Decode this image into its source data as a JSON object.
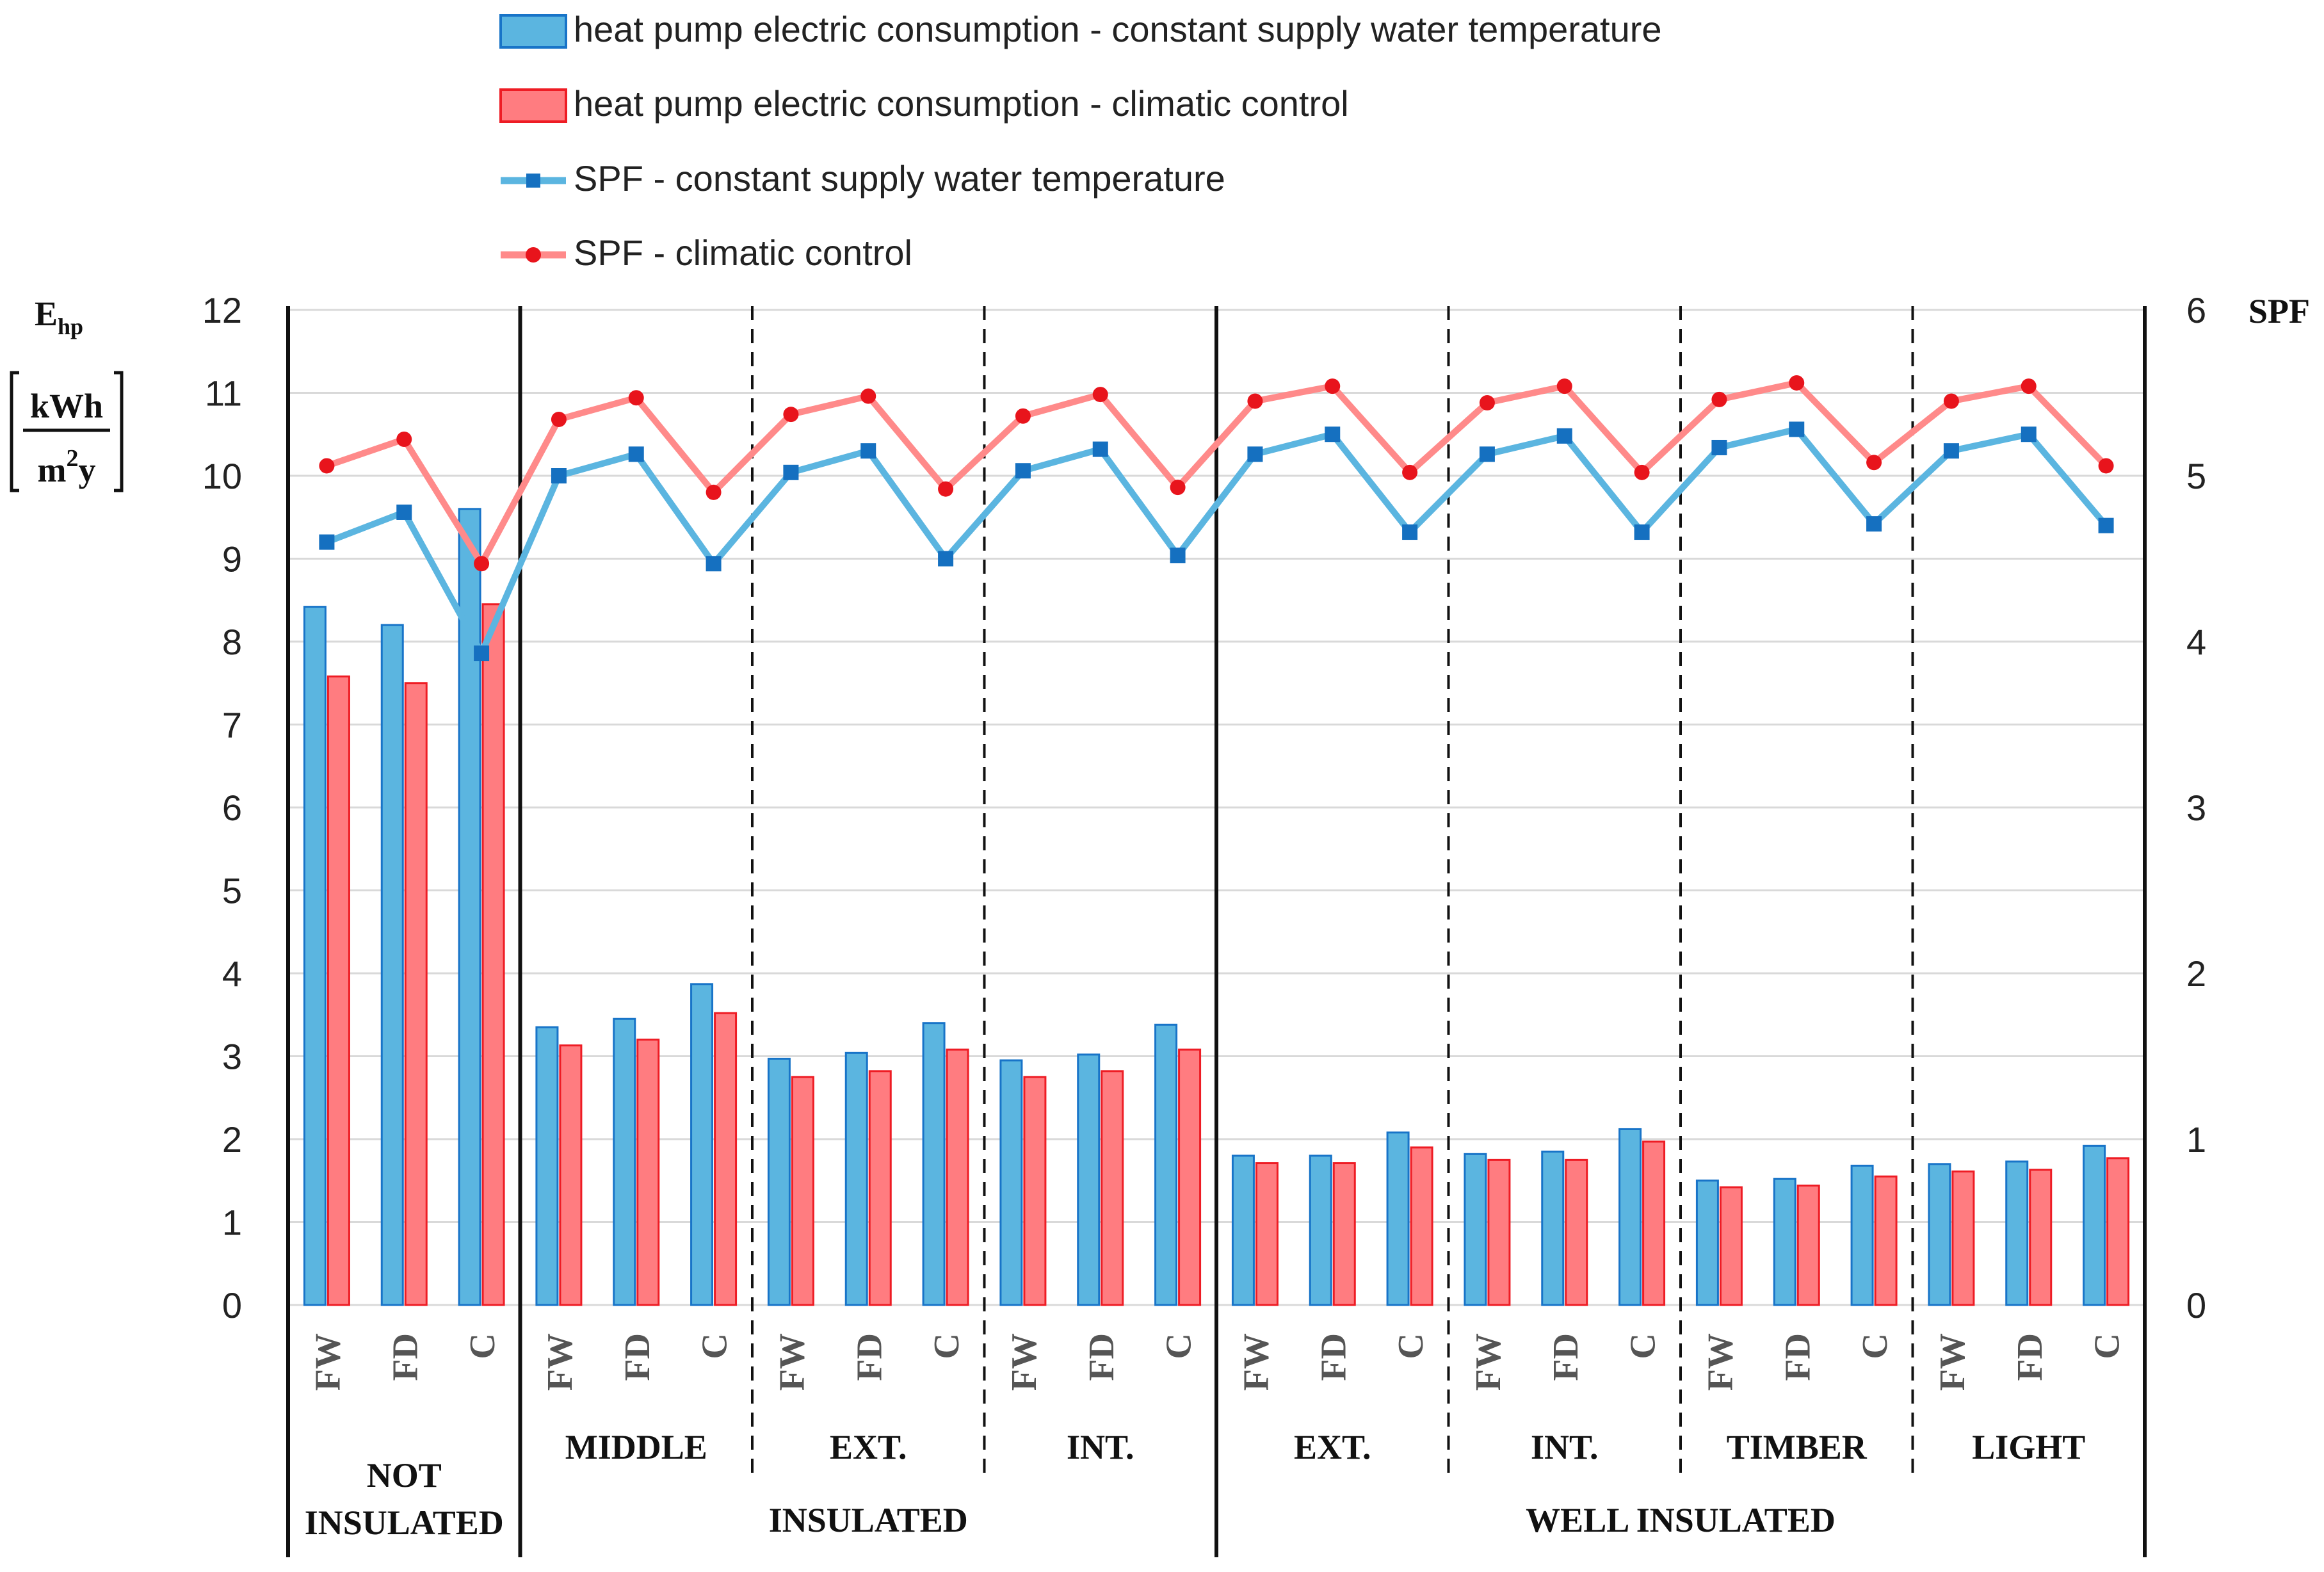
{
  "chart_data": {
    "type": "bar",
    "legend": [
      "heat pump electric consumption - constant supply water temperature",
      "heat pump electric consumption - climatic control",
      "SPF - constant supply water temperature",
      "SPF - climatic control"
    ],
    "y_left": {
      "label_main": "E",
      "label_sub": "hp",
      "unit_numerator": "kWh",
      "unit_denominator_base": "m",
      "unit_denominator_exp": "2",
      "unit_denominator_tail": "y",
      "ylim": [
        0,
        12
      ],
      "ticks": [
        "0",
        "1",
        "2",
        "3",
        "4",
        "5",
        "6",
        "7",
        "8",
        "9",
        "10",
        "11",
        "12"
      ]
    },
    "y_right": {
      "label": "SPF",
      "ylim": [
        0,
        6
      ],
      "ticks": [
        "0",
        "1",
        "2",
        "3",
        "4",
        "5",
        "6"
      ]
    },
    "categories": [
      "FW",
      "FD",
      "C",
      "FW",
      "FD",
      "C",
      "FW",
      "FD",
      "C",
      "FW",
      "FD",
      "C",
      "FW",
      "FD",
      "C",
      "FW",
      "FD",
      "C",
      "FW",
      "FD",
      "C",
      "FW",
      "FD",
      "C"
    ],
    "subgroups": [
      "",
      "MIDDLE",
      "EXT.",
      "INT.",
      "EXT.",
      "INT.",
      "TIMBER",
      "LIGHT"
    ],
    "groups": [
      "NOT INSULATED",
      "INSULATED",
      "WELL INSULATED"
    ],
    "series": [
      {
        "name": "heat pump electric consumption - constant supply water temperature",
        "type": "bar",
        "axis": "left",
        "color": "#5BB5E0",
        "edge": "#1874C8",
        "values": [
          8.42,
          8.2,
          9.6,
          3.35,
          3.45,
          3.87,
          2.97,
          3.04,
          3.4,
          2.95,
          3.02,
          3.38,
          1.8,
          1.8,
          2.08,
          1.82,
          1.85,
          2.12,
          1.5,
          1.52,
          1.68,
          1.7,
          1.73,
          1.92
        ]
      },
      {
        "name": "heat pump electric consumption - climatic control",
        "type": "bar",
        "axis": "left",
        "color": "#FF7C80",
        "edge": "#EE1C24",
        "values": [
          7.58,
          7.5,
          8.45,
          3.13,
          3.2,
          3.52,
          2.75,
          2.82,
          3.08,
          2.75,
          2.82,
          3.08,
          1.71,
          1.71,
          1.9,
          1.75,
          1.75,
          1.97,
          1.42,
          1.44,
          1.55,
          1.61,
          1.63,
          1.77
        ]
      },
      {
        "name": "SPF - constant supply water temperature",
        "type": "line",
        "axis": "right",
        "color": "#5BB5E0",
        "marker_color": "#1570C0",
        "marker": "square",
        "values": [
          4.6,
          4.78,
          3.93,
          5.0,
          5.13,
          4.47,
          5.02,
          5.15,
          4.5,
          5.03,
          5.16,
          4.52,
          5.13,
          5.25,
          4.66,
          5.13,
          5.24,
          4.66,
          5.17,
          5.28,
          4.71,
          5.15,
          5.25,
          4.7
        ]
      },
      {
        "name": "SPF - climatic control",
        "type": "line",
        "axis": "right",
        "color": "#FF8A8A",
        "marker_color": "#E8141C",
        "marker": "circle",
        "values": [
          5.06,
          5.22,
          4.47,
          5.34,
          5.47,
          4.9,
          5.37,
          5.48,
          4.92,
          5.36,
          5.49,
          4.93,
          5.45,
          5.54,
          5.02,
          5.44,
          5.54,
          5.02,
          5.46,
          5.56,
          5.08,
          5.45,
          5.54,
          5.06
        ]
      }
    ]
  }
}
